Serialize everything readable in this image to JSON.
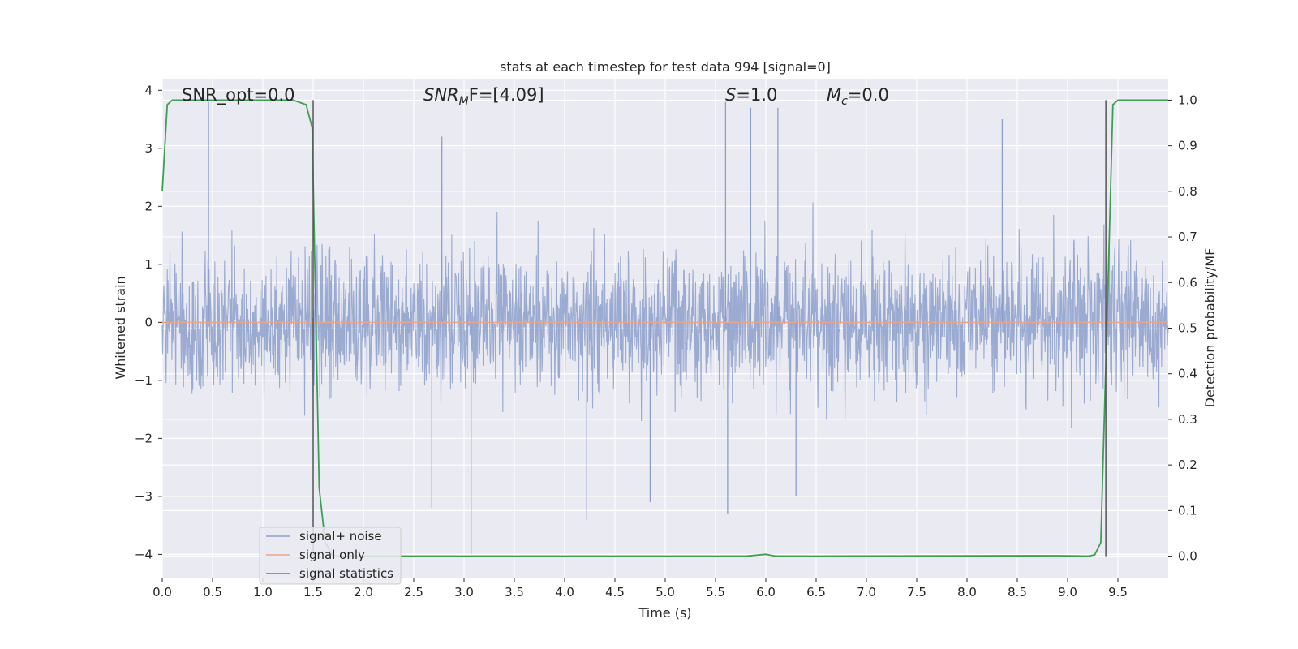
{
  "chart_data": {
    "type": "line",
    "title": "stats at each timestep for test data 994 [signal=0]",
    "xlabel": "Time (s)",
    "ylabel_left": "Whitened strain",
    "ylabel_right": "Detection probability/MF",
    "xlim": [
      0,
      10
    ],
    "ylim_left": [
      -4.4,
      4.2
    ],
    "ylim_right": [
      -0.047,
      1.047
    ],
    "x_ticks": [
      "0.0",
      "0.5",
      "1.0",
      "1.5",
      "2.0",
      "2.5",
      "3.0",
      "3.5",
      "4.0",
      "4.5",
      "5.0",
      "5.5",
      "6.0",
      "6.5",
      "7.0",
      "7.5",
      "8.0",
      "8.5",
      "9.0",
      "9.5"
    ],
    "x_tick_values": [
      0,
      0.5,
      1,
      1.5,
      2,
      2.5,
      3,
      3.5,
      4,
      4.5,
      5,
      5.5,
      6,
      6.5,
      7,
      7.5,
      8,
      8.5,
      9,
      9.5
    ],
    "y_left_ticks": [
      "−4",
      "−3",
      "−2",
      "−1",
      "0",
      "1",
      "2",
      "3",
      "4"
    ],
    "y_left_tick_values": [
      -4,
      -3,
      -2,
      -1,
      0,
      1,
      2,
      3,
      4
    ],
    "y_right_ticks": [
      "0.0",
      "0.1",
      "0.2",
      "0.3",
      "0.4",
      "0.5",
      "0.6",
      "0.7",
      "0.8",
      "0.9",
      "1.0"
    ],
    "y_right_tick_values": [
      0,
      0.1,
      0.2,
      0.3,
      0.4,
      0.5,
      0.6,
      0.7,
      0.8,
      0.9,
      1.0
    ],
    "grid": true,
    "legend_position": "lower-left",
    "annotations": {
      "snr_opt": "SNR_opt=0.0",
      "snr_mf_main": "SNR",
      "snr_mf_sub": "M",
      "snr_mf_rest": "F=[4.09]",
      "s_main": "S",
      "s_rest": "=1.0",
      "mc_main": "M",
      "mc_sub": "c",
      "mc_rest": "=0.0"
    },
    "vertical_markers_x": [
      1.5,
      9.38
    ],
    "noise_spikes": [
      [
        0.46,
        3.8
      ],
      [
        3.07,
        -4.0
      ],
      [
        5.6,
        3.8
      ],
      [
        5.85,
        3.7
      ],
      [
        6.12,
        3.7
      ],
      [
        8.35,
        3.5
      ],
      [
        2.78,
        3.2
      ],
      [
        2.68,
        -3.2
      ],
      [
        4.22,
        -3.4
      ],
      [
        5.62,
        -3.3
      ],
      [
        4.85,
        -3.1
      ],
      [
        6.3,
        -3.0
      ]
    ],
    "series": [
      {
        "name": "signal+ noise",
        "axis": "left",
        "color": "#8c9fcb",
        "description_range": [
          -2.4,
          2.4
        ]
      },
      {
        "name": "signal only",
        "axis": "left",
        "color": "#e8a58a",
        "x": [
          0,
          10
        ],
        "y": [
          0,
          0
        ]
      },
      {
        "name": "signal statistics",
        "axis": "right",
        "color": "#3f9e54",
        "x": [
          0,
          0.05,
          0.1,
          0.2,
          1.3,
          1.43,
          1.49,
          1.52,
          1.56,
          1.62,
          1.7,
          2.0,
          5.8,
          6.0,
          6.1,
          8.9,
          9.2,
          9.27,
          9.33,
          9.39,
          9.45,
          9.5,
          10.0
        ],
        "y": [
          0.8,
          0.99,
          1.0,
          1.0,
          1.0,
          0.99,
          0.94,
          0.6,
          0.15,
          0.03,
          0.0,
          0.0,
          0.0,
          0.004,
          0.0,
          0.001,
          0.0,
          0.003,
          0.03,
          0.5,
          0.99,
          1.0,
          1.0
        ]
      }
    ],
    "legend": [
      "signal+ noise",
      "signal only",
      "signal statistics"
    ]
  }
}
